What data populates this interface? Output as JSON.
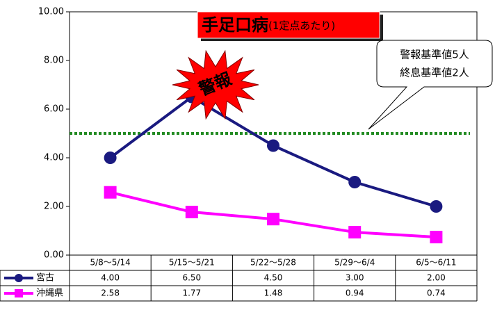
{
  "chart_data": {
    "type": "line",
    "title": "手足口病",
    "subtitle": "(1定点あたり)",
    "categories": [
      "5/8～5/14",
      "5/15～5/21",
      "5/22～5/28",
      "5/29～6/4",
      "6/5～6/11"
    ],
    "series": [
      {
        "name": "宮古",
        "color": "#1a1a80",
        "marker": "circle",
        "values": [
          4.0,
          6.5,
          4.5,
          3.0,
          2.0
        ],
        "value_labels": [
          "4.00",
          "6.50",
          "4.50",
          "3.00",
          "2.00"
        ]
      },
      {
        "name": "沖縄県",
        "color": "#ff00ff",
        "marker": "square",
        "values": [
          2.58,
          1.77,
          1.48,
          0.94,
          0.74
        ],
        "value_labels": [
          "2.58",
          "1.77",
          "1.48",
          "0.94",
          "0.74"
        ]
      }
    ],
    "ylim": [
      0,
      10
    ],
    "yticks": [
      {
        "value": 0,
        "label": "0.00"
      },
      {
        "value": 2,
        "label": "2.00"
      },
      {
        "value": 4,
        "label": "4.00"
      },
      {
        "value": 6,
        "label": "6.00"
      },
      {
        "value": 8,
        "label": "8.00"
      },
      {
        "value": 10,
        "label": "10.00"
      }
    ],
    "alert_level": 5,
    "alert_color": "#228b22",
    "burst_label": "警報",
    "callout": [
      "警報基準値5人",
      "終息基準値2人"
    ]
  }
}
